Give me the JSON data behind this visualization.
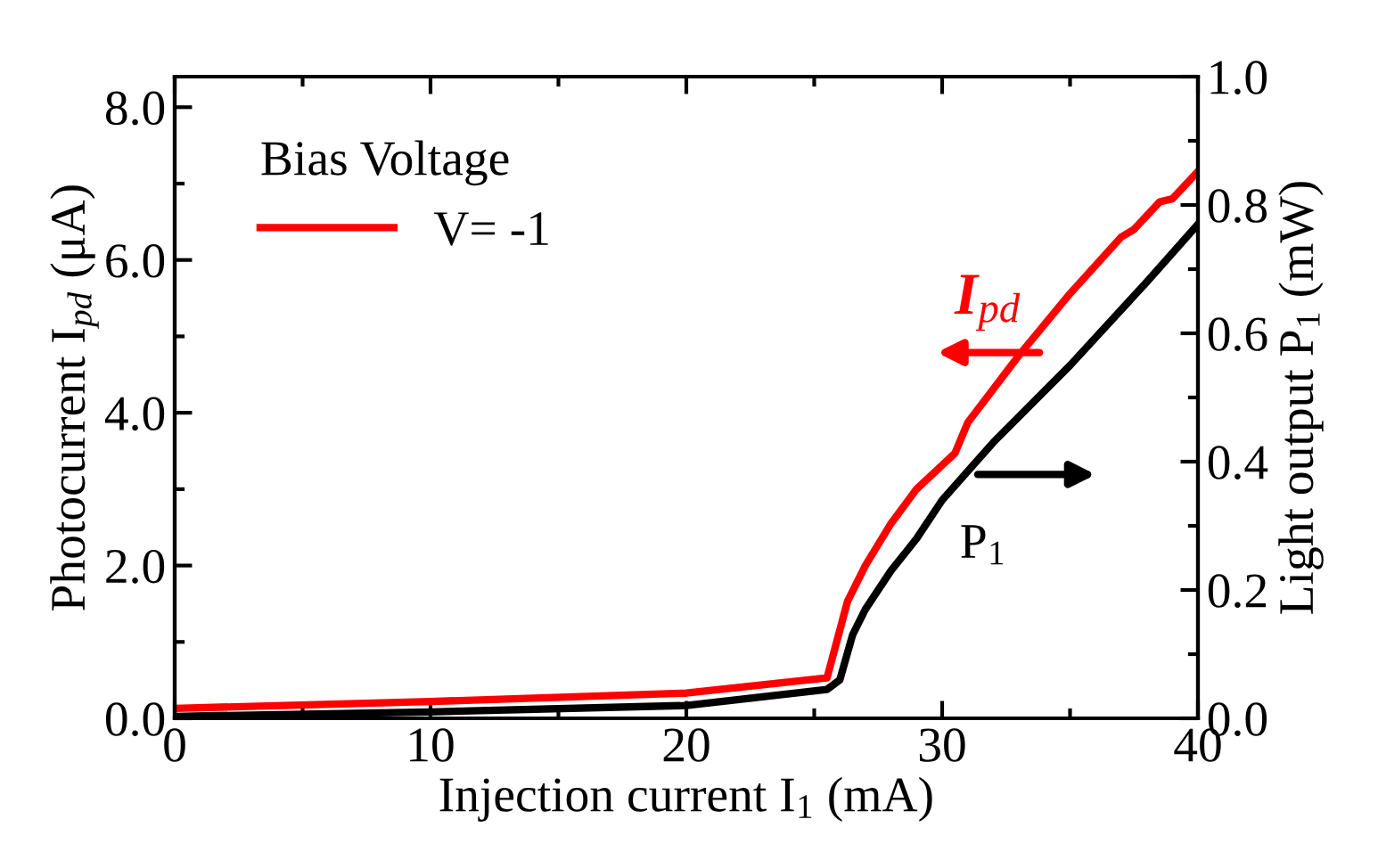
{
  "chart_data": {
    "type": "line",
    "xlabel": "Injection current I$_{1}$ (mA)",
    "ylabel": "Photocurrent I$_{pd}$ (μA)",
    "y2label": "Light output P$_{1}$ (mW)",
    "legend_title": "Bias Voltage",
    "legend": "top left",
    "grid": false,
    "marker": "none",
    "line_style": "solid",
    "xlim": [
      0,
      40
    ],
    "xticks": [
      0,
      10,
      20,
      30,
      40
    ],
    "ylim": [
      0,
      8.4
    ],
    "yticks": [
      {
        "value": 0,
        "label": "0.0"
      },
      {
        "value": 2,
        "label": "2.0"
      },
      {
        "value": 4,
        "label": "4.0"
      },
      {
        "value": 6,
        "label": "6.0"
      },
      {
        "value": 8,
        "label": "8.0"
      }
    ],
    "y2lim": [
      0,
      1.0
    ],
    "y2ticks": [
      {
        "value": 0,
        "label": "0.0"
      },
      {
        "value": 0.2,
        "label": "0.2"
      },
      {
        "value": 0.4,
        "label": "0.4"
      },
      {
        "value": 0.6,
        "label": "0.6"
      },
      {
        "value": 0.8,
        "label": "0.8"
      },
      {
        "value": 1.0,
        "label": "1.0"
      }
    ],
    "series": [
      {
        "name": "V= -1",
        "color": "#ff0000",
        "x": [
          0,
          10,
          20,
          25.5,
          26.3,
          27,
          28,
          29,
          30.5,
          31,
          33,
          35,
          37,
          37.5,
          38.5,
          39,
          40
        ],
        "values": [
          0.13,
          0.22,
          0.33,
          0.53,
          1.53,
          2.0,
          2.55,
          3.0,
          3.47,
          3.87,
          4.75,
          5.56,
          6.3,
          6.4,
          6.76,
          6.8,
          7.16
        ]
      },
      {
        "color": "#000000",
        "axis": "y2",
        "x": [
          0,
          10,
          20,
          25.5,
          26,
          26.5,
          27,
          28,
          29,
          30,
          32,
          35,
          38,
          40
        ],
        "values": [
          0.003,
          0.01,
          0.02,
          0.045,
          0.06,
          0.13,
          0.17,
          0.23,
          0.28,
          0.34,
          0.43,
          0.55,
          0.68,
          0.77
        ]
      }
    ],
    "annotations": [
      "I$_{pd}$",
      "P$_{1}$"
    ]
  }
}
